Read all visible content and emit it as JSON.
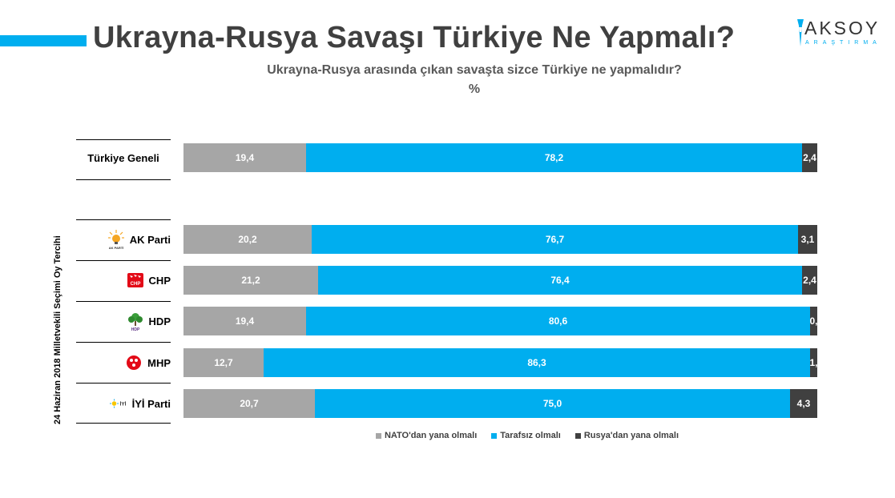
{
  "header": {
    "title": "Ukrayna-Rusya Savaşı Türkiye Ne Yapmalı?",
    "subtitle": "Ukrayna-Rusya arasında çıkan savaşta sizce Türkiye ne yapmalıdır?",
    "unit": "%",
    "logo_name": "AKSOY",
    "logo_sub": "ARAŞTIRMA"
  },
  "side_label": "24 Haziran 2018 Milletvekili Seçimi Oy Tercihi",
  "colors": {
    "accent": "#00AEEF",
    "nato": "#A6A6A6",
    "neutral": "#00AEEF",
    "russia": "#404040"
  },
  "chart_data": {
    "type": "bar",
    "orientation": "horizontal",
    "stacked": "100%",
    "title": "Ukrayna-Rusya Savaşı Türkiye Ne Yapmalı?",
    "categories": [
      "Türkiye Geneli",
      "AK Parti",
      "CHP",
      "HDP",
      "MHP",
      "İYİ Parti"
    ],
    "series": [
      {
        "name": "NATO'dan yana olmalı",
        "values": [
          19.4,
          20.2,
          21.2,
          19.4,
          12.7,
          20.7
        ],
        "labels": [
          "19,4",
          "20,2",
          "21,2",
          "19,4",
          "12,7",
          "20,7"
        ]
      },
      {
        "name": "Tarafsız olmalı",
        "values": [
          78.2,
          76.7,
          76.4,
          80.6,
          86.3,
          75.0
        ],
        "labels": [
          "78,2",
          "76,7",
          "76,4",
          "80,6",
          "86,3",
          "75,0"
        ]
      },
      {
        "name": "Rusya'dan yana olmalı",
        "values": [
          2.4,
          3.1,
          2.4,
          0.0,
          1.0,
          4.3
        ],
        "labels": [
          "2,4",
          "3,1",
          "2,4",
          "0,",
          "1,",
          "4,3"
        ]
      }
    ],
    "legend_position": "bottom",
    "xlim": [
      0,
      100
    ],
    "grid": false
  },
  "party_icons": [
    "akp-bulb-icon",
    "chp-arrows-icon",
    "hdp-tree-icon",
    "mhp-crescent-icon",
    "iyi-sun-icon"
  ]
}
